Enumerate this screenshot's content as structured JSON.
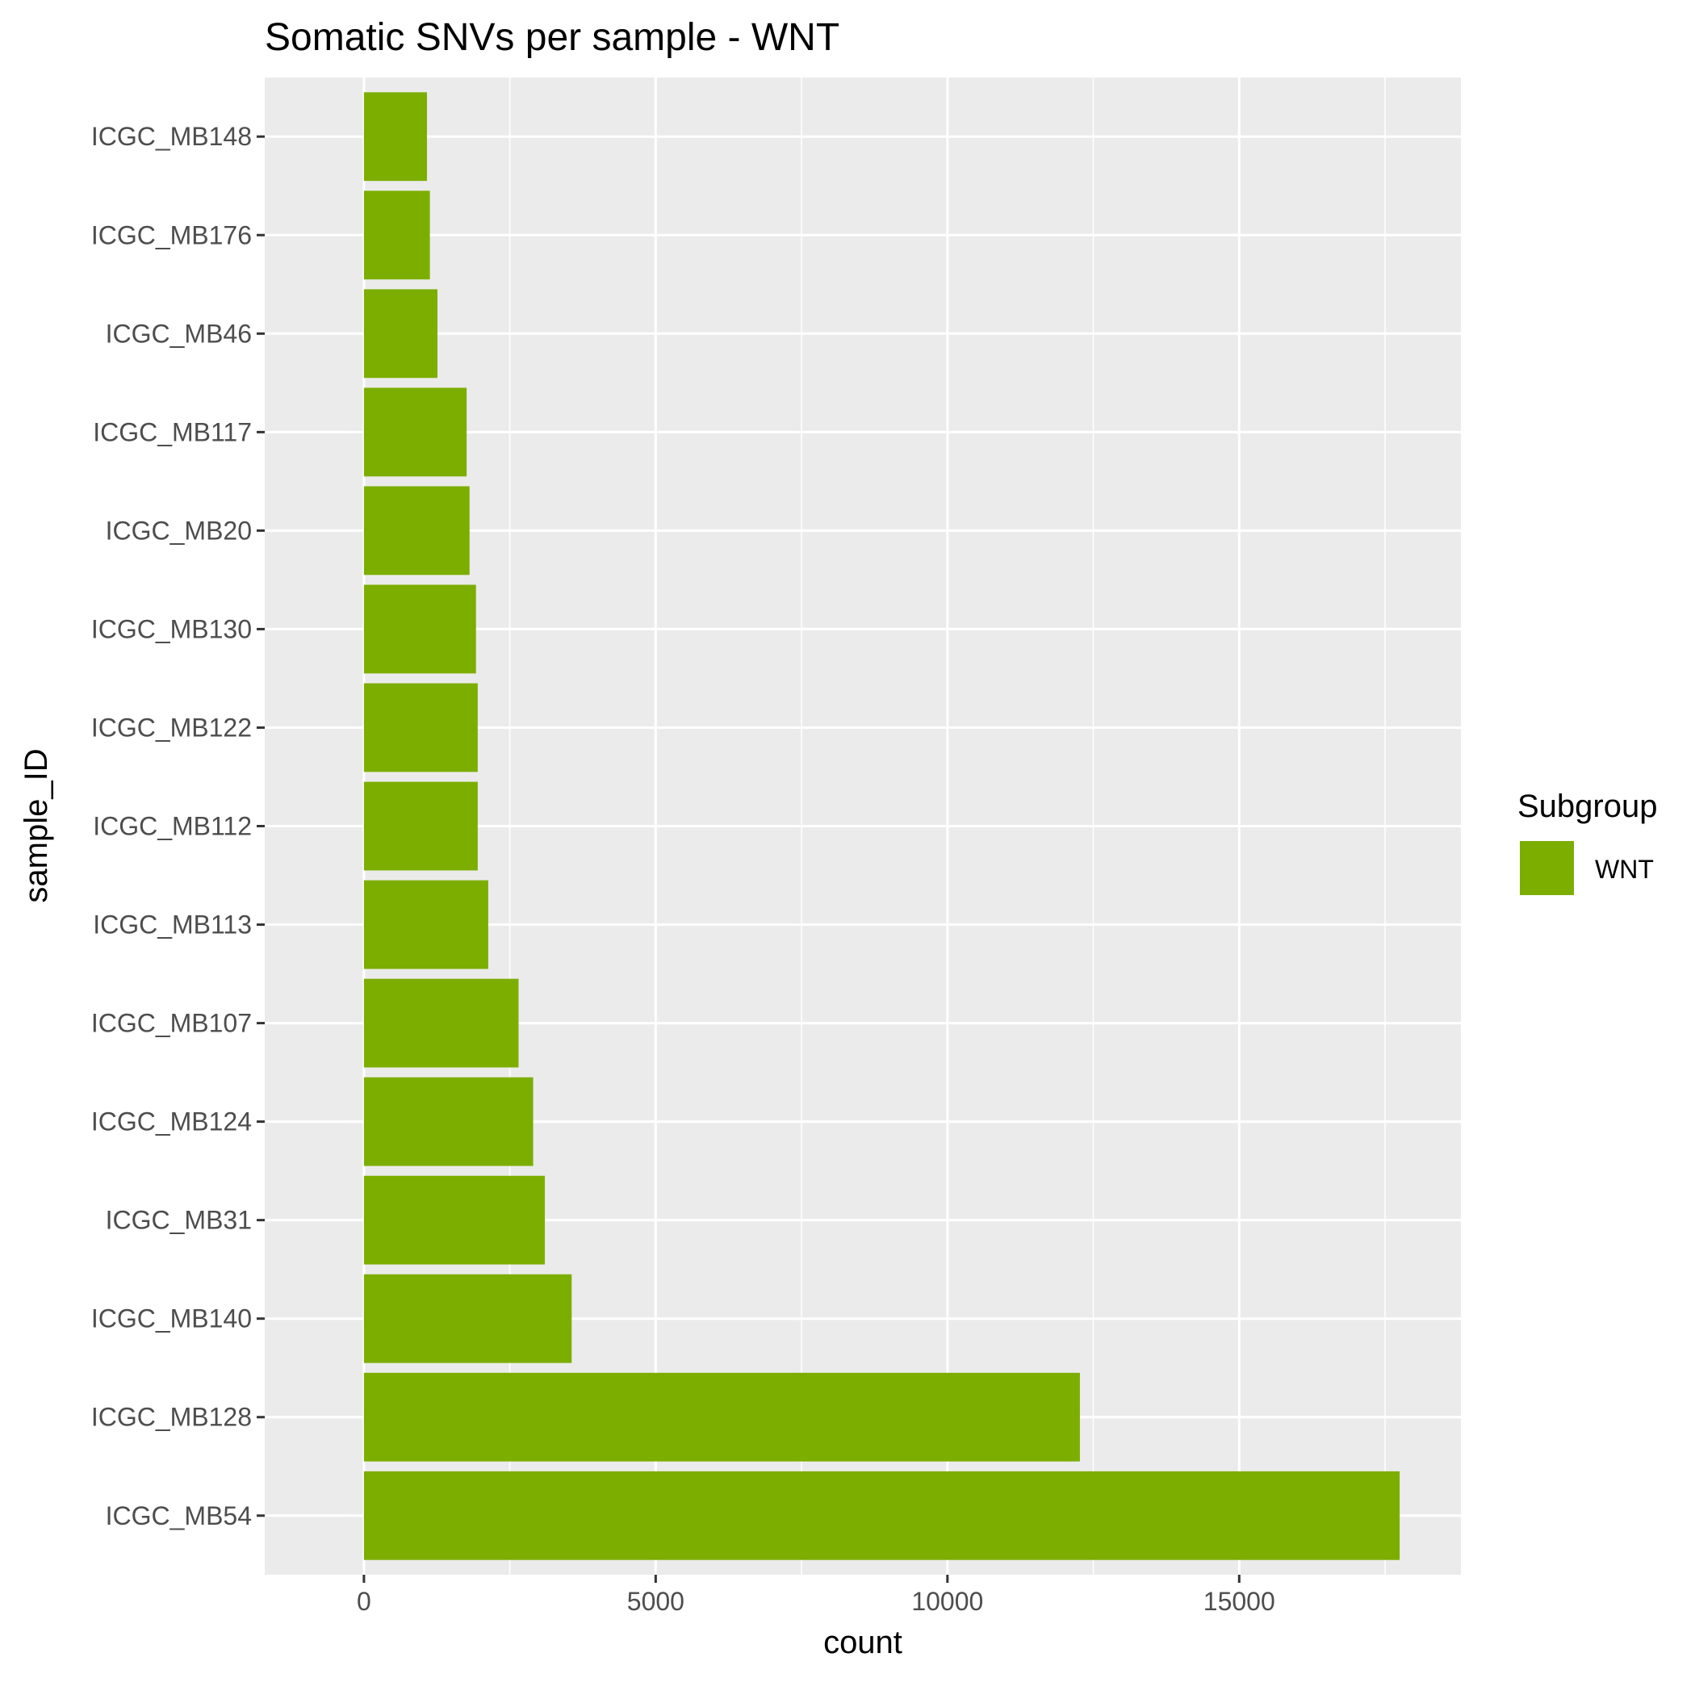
{
  "chart_data": {
    "type": "bar",
    "orientation": "horizontal",
    "title": "Somatic SNVs per sample - WNT",
    "xlabel": "count",
    "ylabel": "sample_ID",
    "xlim": [
      -1700,
      18800
    ],
    "x_ticks": [
      0,
      5000,
      10000,
      15000
    ],
    "x_tick_labels": [
      "0",
      "5000",
      "10000",
      "15000"
    ],
    "grid": true,
    "categories": [
      "ICGC_MB148",
      "ICGC_MB176",
      "ICGC_MB46",
      "ICGC_MB117",
      "ICGC_MB20",
      "ICGC_MB130",
      "ICGC_MB122",
      "ICGC_MB112",
      "ICGC_MB113",
      "ICGC_MB107",
      "ICGC_MB124",
      "ICGC_MB31",
      "ICGC_MB140",
      "ICGC_MB128",
      "ICGC_MB54"
    ],
    "series": [
      {
        "name": "WNT",
        "color": "#7cae00",
        "values": [
          1080,
          1130,
          1260,
          1760,
          1810,
          1920,
          1950,
          1950,
          2130,
          2650,
          2900,
          3100,
          3560,
          12270,
          17750
        ]
      }
    ],
    "legend": {
      "title": "Subgroup",
      "position": "right"
    },
    "colors": {
      "panel": "#ebebeb",
      "grid": "#ffffff",
      "bar": "#7cae00"
    }
  }
}
